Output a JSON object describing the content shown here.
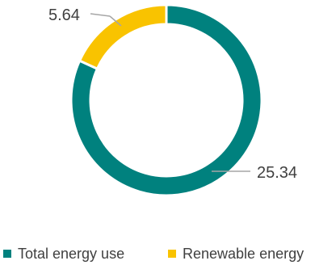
{
  "chart_data": {
    "type": "pie",
    "variant": "donut",
    "title": "",
    "categories": [
      "Total energy use",
      "Renewable energy"
    ],
    "values": [
      25.34,
      5.64
    ],
    "value_labels": [
      "25.34",
      "5.64"
    ],
    "colors": [
      "#00817E",
      "#F9C300"
    ],
    "legend_position": "bottom"
  }
}
